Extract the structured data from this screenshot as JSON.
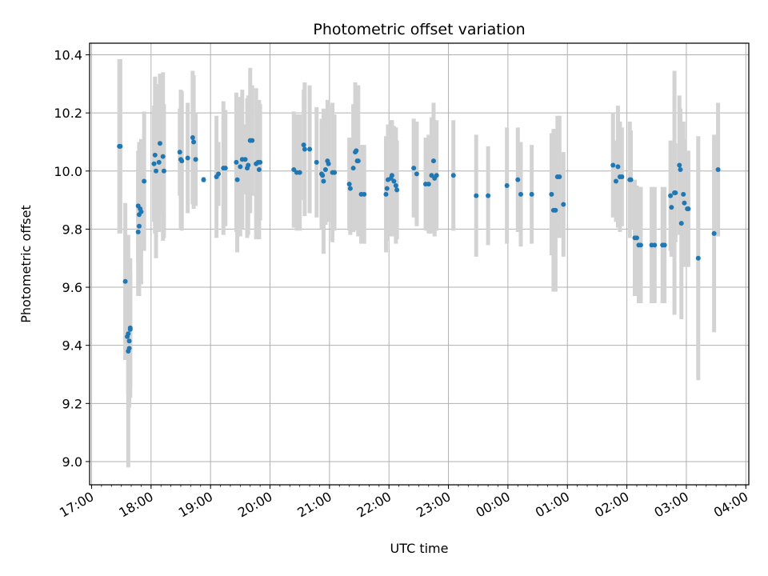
{
  "chart_data": {
    "type": "scatter",
    "title": "Photometric offset variation",
    "xlabel": "UTC time",
    "ylabel": "Photometric offset",
    "x_axis": "time (UTC, hours; 17:00 day 1 to 04:00 day 2)",
    "xlim": [
      "16:58",
      "04:03"
    ],
    "ylim": [
      8.92,
      10.44
    ],
    "x_ticks": [
      "17:00",
      "18:00",
      "19:00",
      "20:00",
      "21:00",
      "22:00",
      "23:00",
      "00:00",
      "01:00",
      "02:00",
      "03:00",
      "04:00"
    ],
    "y_ticks": [
      "9.0",
      "9.2",
      "9.4",
      "9.6",
      "9.8",
      "10.0",
      "10.2",
      "10.4"
    ],
    "grid": true,
    "marker_color": "#1f77b4",
    "errorbar_color": "#d3d3d3",
    "series": [
      {
        "points": [
          [
            "17:28",
            10.085,
            0.3
          ],
          [
            "17:29",
            10.085,
            0.3
          ],
          [
            "17:34",
            9.62,
            0.27
          ],
          [
            "17:36",
            9.43,
            0.07
          ],
          [
            "17:37",
            9.44,
            0.21
          ],
          [
            "17:37",
            9.38,
            0.4
          ],
          [
            "17:38",
            9.415,
            0.23
          ],
          [
            "17:38",
            9.39,
            0.2
          ],
          [
            "17:39",
            9.455,
            0.2
          ],
          [
            "17:39",
            9.46,
            0.24
          ],
          [
            "17:47",
            9.88,
            0.19
          ],
          [
            "17:47",
            9.79,
            0.22
          ],
          [
            "17:48",
            9.81,
            0.24
          ],
          [
            "17:48",
            9.85,
            0.25
          ],
          [
            "17:49",
            9.87,
            0.22
          ],
          [
            "17:50",
            9.86,
            0.25
          ],
          [
            "17:53",
            9.965,
            0.24
          ],
          [
            "18:03",
            10.025,
            0.2
          ],
          [
            "18:04",
            10.055,
            0.27
          ],
          [
            "18:05",
            10.0,
            0.3
          ],
          [
            "18:08",
            10.03,
            0.24
          ],
          [
            "18:09",
            10.095,
            0.24
          ],
          [
            "18:12",
            10.05,
            0.29
          ],
          [
            "18:13",
            10.0,
            0.23
          ],
          [
            "18:29",
            10.065,
            0.15
          ],
          [
            "18:30",
            10.04,
            0.24
          ],
          [
            "18:31",
            10.035,
            0.24
          ],
          [
            "18:37",
            10.045,
            0.19
          ],
          [
            "18:42",
            10.115,
            0.23
          ],
          [
            "18:43",
            10.1,
            0.23
          ],
          [
            "18:45",
            10.04,
            0.16
          ],
          [
            "18:53",
            9.97,
            0.01
          ],
          [
            "19:06",
            9.98,
            0.21
          ],
          [
            "19:08",
            9.99,
            0.11
          ],
          [
            "19:13",
            10.01,
            0.23
          ],
          [
            "19:15",
            10.01,
            0.2
          ],
          [
            "19:26",
            10.03,
            0.24
          ],
          [
            "19:27",
            9.97,
            0.25
          ],
          [
            "19:30",
            10.015,
            0.24
          ],
          [
            "19:32",
            10.04,
            0.24
          ],
          [
            "19:35",
            10.04,
            0.12
          ],
          [
            "19:37",
            10.01,
            0.24
          ],
          [
            "19:38",
            10.02,
            0.24
          ],
          [
            "19:40",
            10.105,
            0.25
          ],
          [
            "19:42",
            10.105,
            0.19
          ],
          [
            "19:46",
            10.025,
            0.26
          ],
          [
            "19:48",
            10.03,
            0.21
          ],
          [
            "19:49",
            10.005,
            0.24
          ],
          [
            "19:50",
            10.03,
            0.2
          ],
          [
            "20:24",
            10.005,
            0.2
          ],
          [
            "20:27",
            9.995,
            0.2
          ],
          [
            "20:30",
            9.995,
            0.2
          ],
          [
            "20:34",
            10.09,
            0.19
          ],
          [
            "20:35",
            10.075,
            0.23
          ],
          [
            "20:40",
            10.075,
            0.22
          ],
          [
            "20:47",
            10.03,
            0.19
          ],
          [
            "20:52",
            9.99,
            0.19
          ],
          [
            "20:53",
            9.985,
            0.17
          ],
          [
            "20:54",
            9.965,
            0.25
          ],
          [
            "20:56",
            10.005,
            0.19
          ],
          [
            "20:58",
            10.035,
            0.21
          ],
          [
            "20:59",
            10.025,
            0.2
          ],
          [
            "21:03",
            9.995,
            0.24
          ],
          [
            "21:05",
            9.995,
            0.2
          ],
          [
            "21:20",
            9.955,
            0.16
          ],
          [
            "21:21",
            9.94,
            0.16
          ],
          [
            "21:24",
            10.01,
            0.22
          ],
          [
            "21:26",
            10.065,
            0.24
          ],
          [
            "21:27",
            10.07,
            0.2
          ],
          [
            "21:28",
            10.035,
            0.24
          ],
          [
            "21:29",
            10.035,
            0.26
          ],
          [
            "21:32",
            9.92,
            0.17
          ],
          [
            "21:35",
            9.92,
            0.17
          ],
          [
            "21:57",
            9.92,
            0.2
          ],
          [
            "21:58",
            9.94,
            0.18
          ],
          [
            "21:59",
            9.97,
            0.19
          ],
          [
            "22:02",
            9.975,
            0.2
          ],
          [
            "22:03",
            9.985,
            0.19
          ],
          [
            "22:05",
            9.965,
            0.19
          ],
          [
            "22:07",
            9.95,
            0.2
          ],
          [
            "22:08",
            9.935,
            0.17
          ],
          [
            "22:25",
            10.01,
            0.17
          ],
          [
            "22:28",
            9.99,
            0.18
          ],
          [
            "22:37",
            9.955,
            0.16
          ],
          [
            "22:40",
            9.955,
            0.17
          ],
          [
            "22:43",
            9.985,
            0.2
          ],
          [
            "22:45",
            10.035,
            0.2
          ],
          [
            "22:46",
            9.975,
            0.2
          ],
          [
            "22:48",
            9.985,
            0.19
          ],
          [
            "23:05",
            9.985,
            0.19
          ],
          [
            "23:28",
            9.915,
            0.21
          ],
          [
            "23:40",
            9.915,
            0.17
          ],
          [
            "23:59",
            9.95,
            0.2
          ],
          [
            "00:10",
            9.97,
            0.18
          ],
          [
            "00:13",
            9.92,
            0.18
          ],
          [
            "00:24",
            9.92,
            0.17
          ],
          [
            "00:44",
            9.92,
            0.21
          ],
          [
            "00:46",
            9.865,
            0.28
          ],
          [
            "00:48",
            9.865,
            0.28
          ],
          [
            "00:50",
            9.98,
            0.21
          ],
          [
            "00:52",
            9.98,
            0.21
          ],
          [
            "00:56",
            9.885,
            0.18
          ],
          [
            "01:46",
            10.02,
            0.18
          ],
          [
            "01:49",
            9.965,
            0.14
          ],
          [
            "01:51",
            10.015,
            0.21
          ],
          [
            "01:53",
            9.98,
            0.19
          ],
          [
            "01:55",
            9.98,
            0.17
          ],
          [
            "02:03",
            9.97,
            0.2
          ],
          [
            "02:04",
            9.97,
            0.17
          ],
          [
            "02:08",
            9.77,
            0.2
          ],
          [
            "02:10",
            9.77,
            0.18
          ],
          [
            "02:12",
            9.745,
            0.2
          ],
          [
            "02:14",
            9.745,
            0.2
          ],
          [
            "02:25",
            9.745,
            0.2
          ],
          [
            "02:28",
            9.745,
            0.2
          ],
          [
            "02:36",
            9.745,
            0.2
          ],
          [
            "02:38",
            9.745,
            0.2
          ],
          [
            "02:44",
            9.915,
            0.19
          ],
          [
            "02:45",
            9.875,
            0.17
          ],
          [
            "02:48",
            9.925,
            0.42
          ],
          [
            "02:49",
            9.925,
            0.17
          ],
          [
            "02:53",
            10.02,
            0.24
          ],
          [
            "02:54",
            10.005,
            0.21
          ],
          [
            "02:55",
            9.82,
            0.33
          ],
          [
            "02:57",
            9.92,
            0.25
          ],
          [
            "02:58",
            9.89,
            0.22
          ],
          [
            "03:01",
            9.87,
            0.2
          ],
          [
            "03:02",
            9.87,
            0.2
          ],
          [
            "03:12",
            9.7,
            0.42
          ],
          [
            "03:28",
            9.785,
            0.34
          ],
          [
            "03:32",
            10.005,
            0.23
          ]
        ]
      }
    ]
  }
}
